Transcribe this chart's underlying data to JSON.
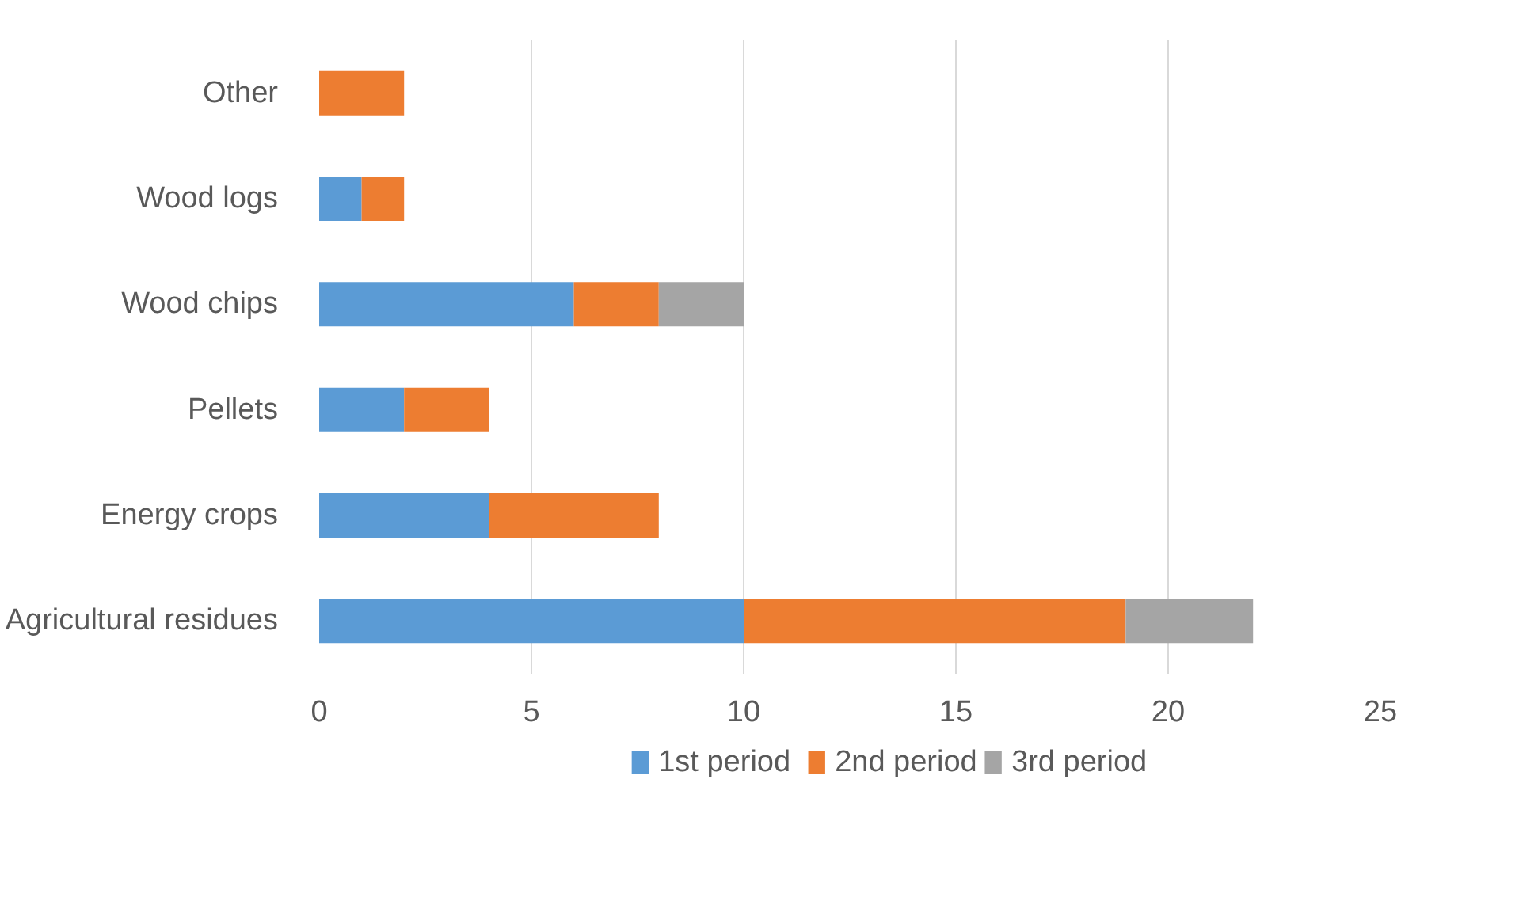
{
  "chart_data": {
    "type": "bar",
    "orientation": "horizontal",
    "stacked": true,
    "categories": [
      "Other",
      "Wood logs",
      "Wood chips",
      "Pellets",
      "Energy crops",
      "Agricultural residues"
    ],
    "series": [
      {
        "name": "1st period",
        "color": "#5b9bd5",
        "values": [
          null,
          1,
          6,
          2,
          4,
          10
        ]
      },
      {
        "name": "2nd period",
        "color": "#ed7d31",
        "values": [
          2,
          1,
          2,
          2,
          4,
          9
        ]
      },
      {
        "name": "3rd period",
        "color": "#a5a5a5",
        "values": [
          null,
          null,
          2,
          null,
          null,
          3
        ]
      }
    ],
    "xlim": [
      0,
      25
    ],
    "xticks": [
      0,
      5,
      10,
      15,
      20,
      25
    ],
    "grid": "x",
    "legend": "bottom"
  }
}
